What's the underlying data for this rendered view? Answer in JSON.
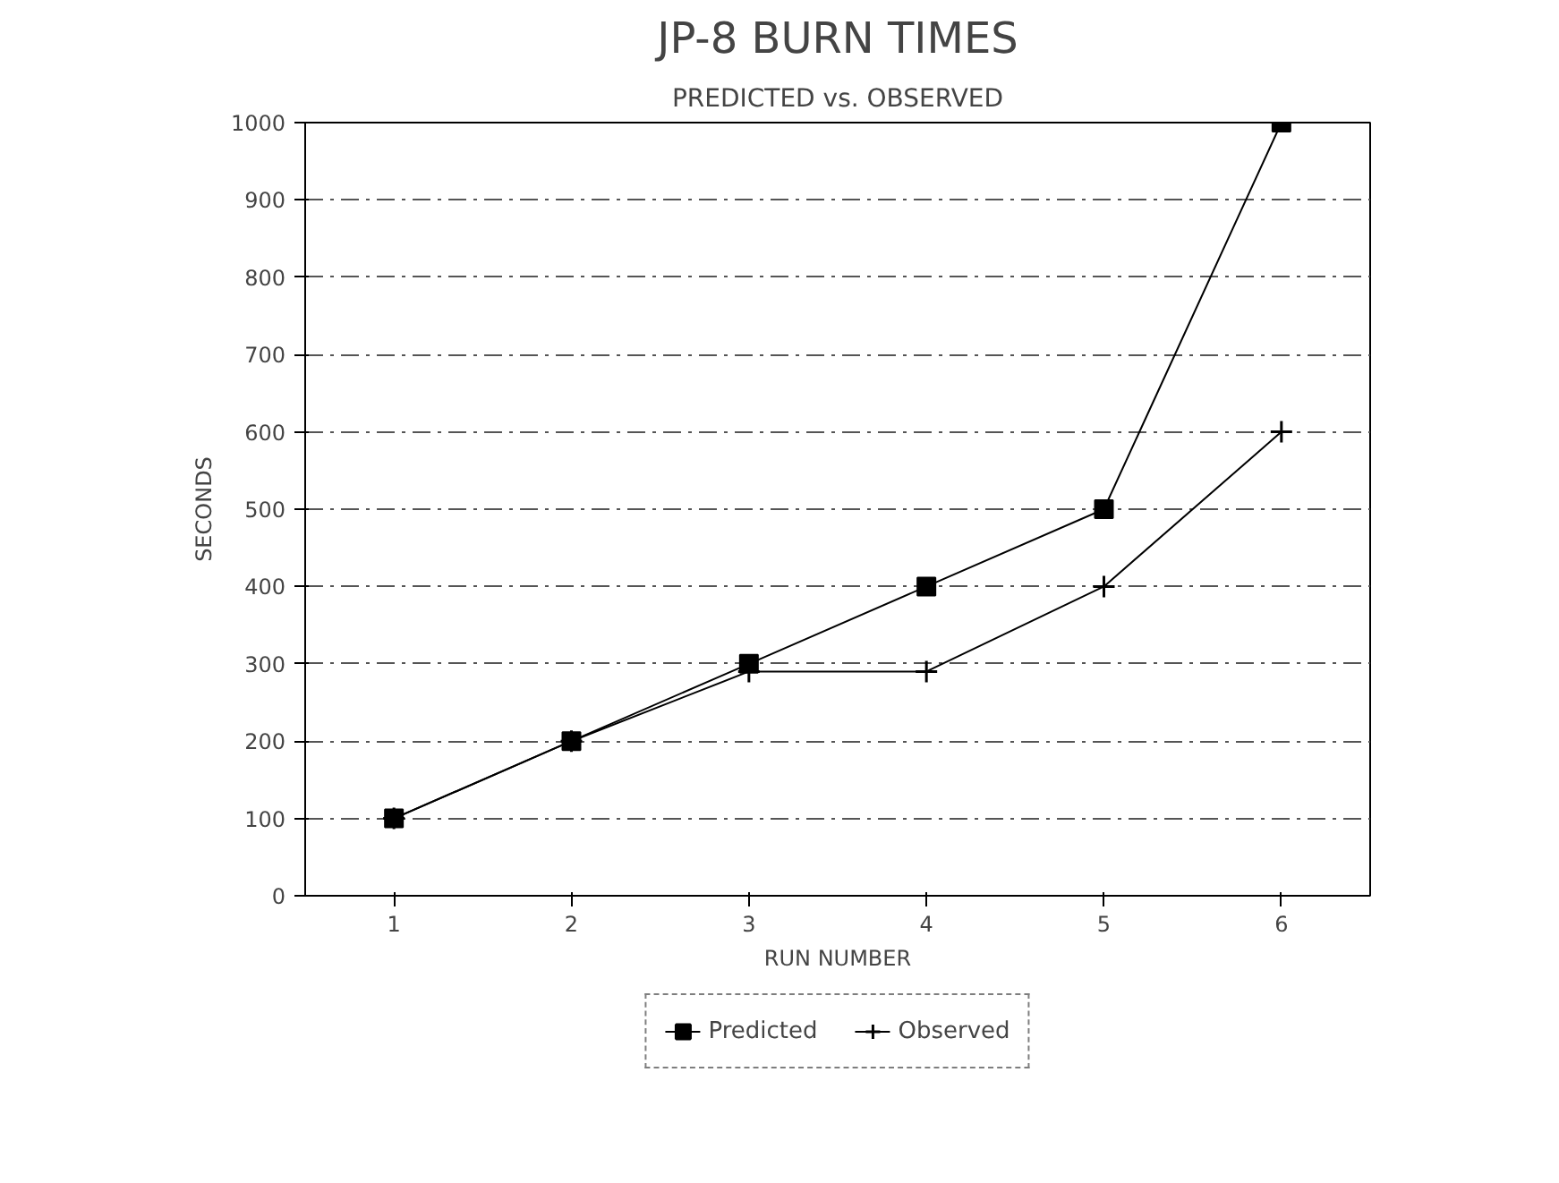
{
  "chart_data": {
    "type": "line",
    "title": "JP-8 BURN TIMES",
    "subtitle": "PREDICTED vs. OBSERVED",
    "xlabel": "RUN NUMBER",
    "ylabel": "SECONDS",
    "categories": [
      "1",
      "2",
      "3",
      "4",
      "5",
      "6"
    ],
    "series": [
      {
        "name": "Predicted",
        "color": "#000000",
        "marker": "square",
        "values": [
          100,
          200,
          300,
          400,
          500,
          1000
        ]
      },
      {
        "name": "Observed",
        "color": "#000000",
        "marker": "cross",
        "values": [
          100,
          200,
          290,
          290,
          400,
          600
        ]
      }
    ],
    "ylim": [
      0,
      1000
    ],
    "yticks": [
      0,
      100,
      200,
      300,
      400,
      500,
      600,
      700,
      800,
      900,
      1000
    ],
    "grid": "y",
    "legend": "bottom",
    "line_style": "solid"
  }
}
